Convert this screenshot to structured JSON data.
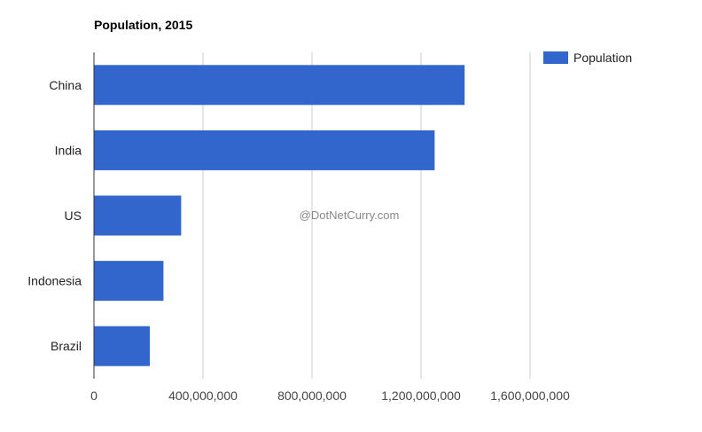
{
  "chart_data": {
    "type": "bar",
    "orientation": "horizontal",
    "title": "Population, 2015",
    "categories": [
      "China",
      "India",
      "US",
      "Indonesia",
      "Brazil"
    ],
    "series": [
      {
        "name": "Population",
        "values": [
          1360000000,
          1250000000,
          320000000,
          255000000,
          205000000
        ]
      }
    ],
    "xlim": [
      0,
      1600000000
    ],
    "x_ticks": [
      0,
      400000000,
      800000000,
      1200000000,
      1600000000
    ],
    "x_tick_labels": [
      "0",
      "400,000,000",
      "800,000,000",
      "1,200,000,000",
      "1,600,000,000"
    ],
    "xlabel": "",
    "ylabel": "",
    "grid": true,
    "legend_position": "top-right"
  },
  "watermark": "@DotNetCurry.com",
  "colors": {
    "bar": "#3366cc",
    "grid": "#cccccc",
    "axis": "#333333"
  }
}
